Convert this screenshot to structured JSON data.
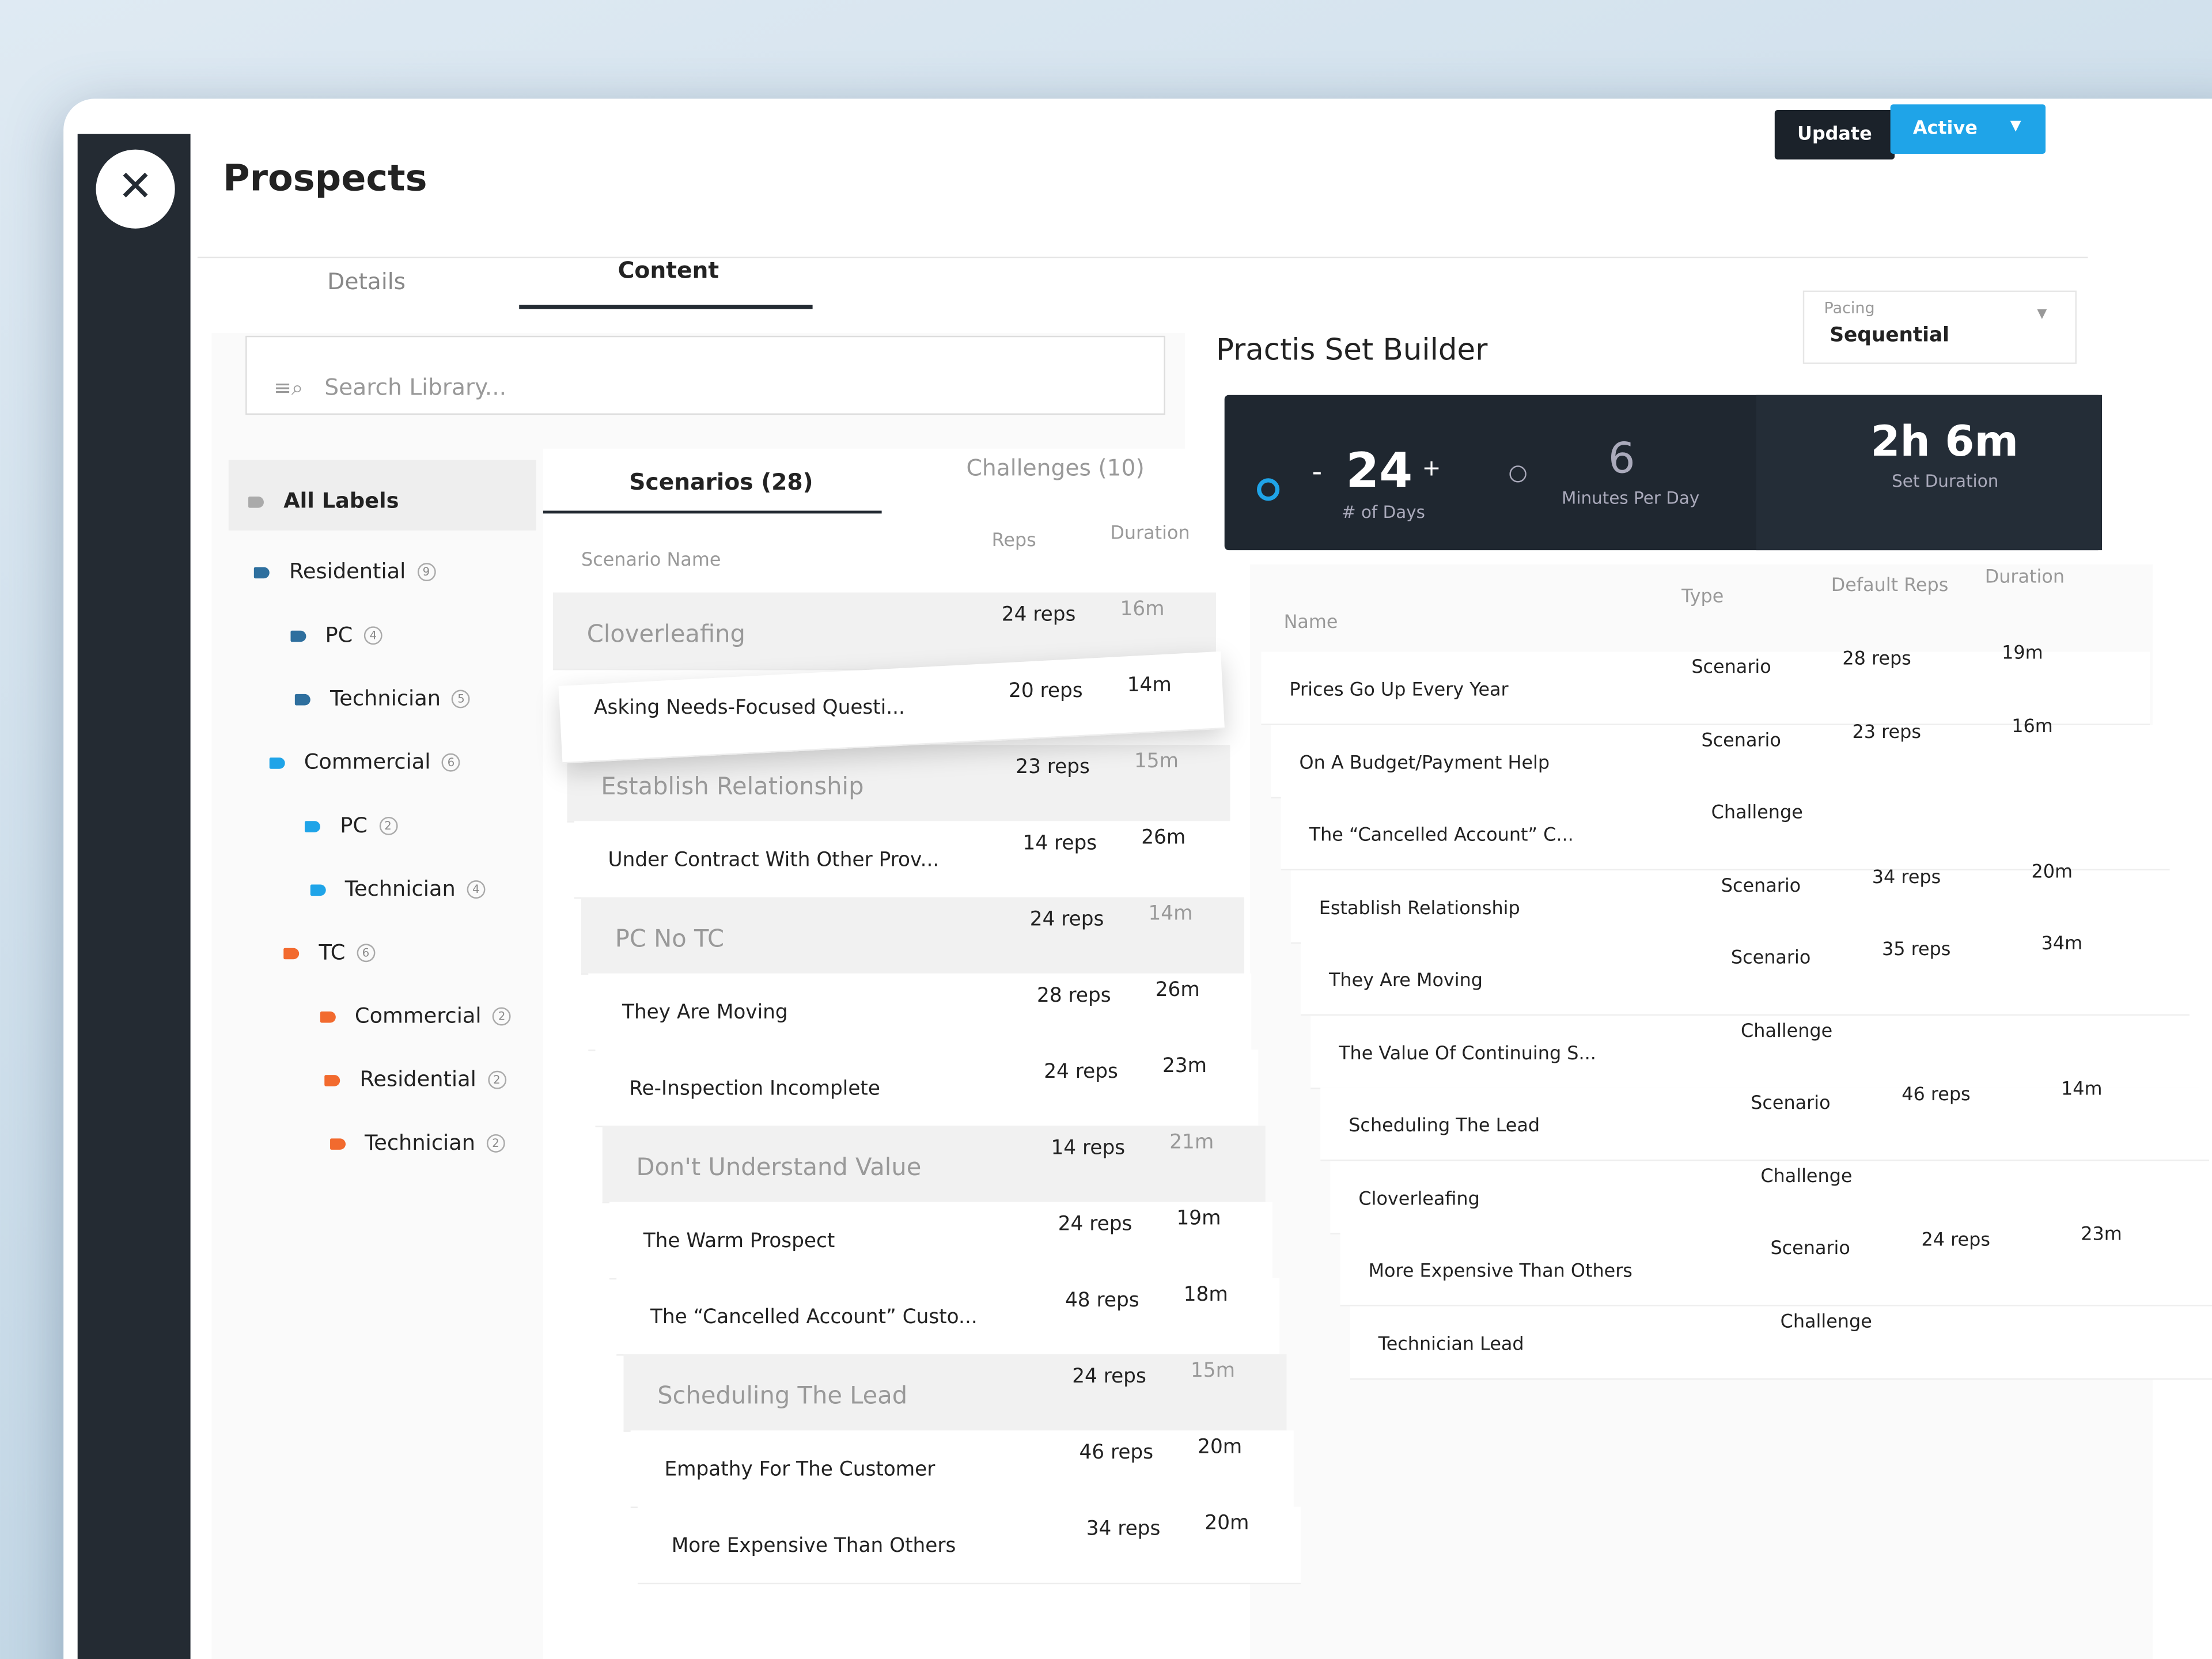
{
  "header": {
    "title": "Prospects",
    "buttons": {
      "update": "Update",
      "active": "Active"
    }
  },
  "tabs": [
    "Details",
    "Content"
  ],
  "search": {
    "placeholder": "Search Library..."
  },
  "labels": {
    "all": "All Labels",
    "items": [
      {
        "name": "Residential",
        "count": "9",
        "level": 0,
        "color": "#2e6f9e"
      },
      {
        "name": "PC",
        "count": "4",
        "level": 1,
        "color": "#2e6f9e"
      },
      {
        "name": "Technician",
        "count": "5",
        "level": 1,
        "color": "#2e6f9e"
      },
      {
        "name": "Commercial",
        "count": "6",
        "level": 0,
        "color": "#1fa4e8"
      },
      {
        "name": "PC",
        "count": "2",
        "level": 1,
        "color": "#1fa4e8"
      },
      {
        "name": "Technician",
        "count": "4",
        "level": 1,
        "color": "#1fa4e8"
      },
      {
        "name": "TC",
        "count": "6",
        "level": 0,
        "color": "#f26a2e"
      },
      {
        "name": "Commercial",
        "count": "2",
        "level": 1,
        "color": "#f26a2e"
      },
      {
        "name": "Residential",
        "count": "2",
        "level": 1,
        "color": "#f26a2e"
      },
      {
        "name": "Technician",
        "count": "2",
        "level": 1,
        "color": "#f26a2e"
      }
    ]
  },
  "library": {
    "tabs": [
      "Scenarios (28)",
      "Challenges (10)"
    ],
    "columns": [
      "Scenario Name",
      "Reps",
      "Duration"
    ],
    "rows": [
      {
        "name": "Cloverleafing",
        "reps": "24 reps",
        "duration": "16m",
        "state": "added"
      },
      {
        "name": "Asking Needs-Focused Questi...",
        "reps": "20 reps",
        "duration": "14m",
        "state": "dragging"
      },
      {
        "name": "Establish Relationship",
        "reps": "23 reps",
        "duration": "15m",
        "state": "added"
      },
      {
        "name": "Under Contract With Other Prov...",
        "reps": "14 reps",
        "duration": "26m",
        "state": "available"
      },
      {
        "name": "PC No TC",
        "reps": "24 reps",
        "duration": "14m",
        "state": "added"
      },
      {
        "name": "They Are Moving",
        "reps": "28 reps",
        "duration": "26m",
        "state": "available"
      },
      {
        "name": "Re-Inspection Incomplete",
        "reps": "24 reps",
        "duration": "23m",
        "state": "available"
      },
      {
        "name": "Don't Understand Value",
        "reps": "14 reps",
        "duration": "21m",
        "state": "added"
      },
      {
        "name": "The Warm Prospect",
        "reps": "24 reps",
        "duration": "19m",
        "state": "available"
      },
      {
        "name": "The “Cancelled Account” Custo...",
        "reps": "48 reps",
        "duration": "18m",
        "state": "available"
      },
      {
        "name": "Scheduling The Lead",
        "reps": "24 reps",
        "duration": "15m",
        "state": "added"
      },
      {
        "name": "Empathy For The Customer",
        "reps": "46 reps",
        "duration": "20m",
        "state": "available"
      },
      {
        "name": "More Expensive Than Others",
        "reps": "34 reps",
        "duration": "20m",
        "state": "available"
      }
    ]
  },
  "builder": {
    "title": "Practis Set Builder",
    "pacing": {
      "label": "Pacing",
      "value": "Sequential"
    },
    "days": {
      "value": "24",
      "label": "# of Days",
      "minus": "-",
      "plus": "+"
    },
    "minutes": {
      "value": "6",
      "label": "Minutes Per Day"
    },
    "duration": {
      "value": "2h 6m",
      "label": "Set Duration"
    },
    "columns": [
      "Name",
      "Type",
      "Default Reps",
      "Duration"
    ],
    "rows": [
      {
        "name": "Prices Go Up Every Year",
        "type": "Scenario",
        "reps": "28 reps",
        "duration": "19m"
      },
      {
        "name": "On A Budget/Payment Help",
        "type": "Scenario",
        "reps": "23 reps",
        "duration": "16m"
      },
      {
        "name": "The “Cancelled Account” C...",
        "type": "Challenge",
        "reps": null,
        "duration": null
      },
      {
        "name": "Establish Relationship",
        "type": "Scenario",
        "reps": "34 reps",
        "duration": "20m"
      },
      {
        "name": "They Are Moving",
        "type": "Scenario",
        "reps": "35 reps",
        "duration": "34m"
      },
      {
        "name": "The Value Of Continuing S...",
        "type": "Challenge",
        "reps": null,
        "duration": null
      },
      {
        "name": "Scheduling The Lead",
        "type": "Scenario",
        "reps": "46 reps",
        "duration": "14m"
      },
      {
        "name": "Cloverleafing",
        "type": "Challenge",
        "reps": null,
        "duration": null
      },
      {
        "name": "More Expensive Than Others",
        "type": "Scenario",
        "reps": "24 reps",
        "duration": "23m"
      },
      {
        "name": "Technician Lead",
        "type": "Challenge",
        "reps": null,
        "duration": null
      }
    ]
  }
}
